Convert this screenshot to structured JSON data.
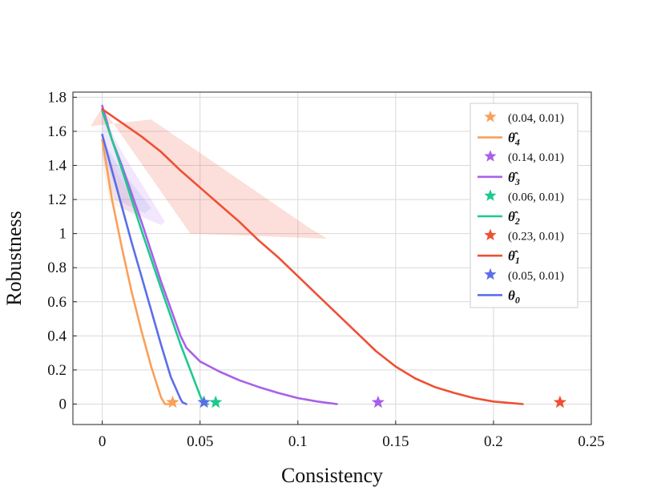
{
  "chart_data": {
    "type": "line",
    "title": "",
    "xlabel": "Consistency",
    "ylabel": "Robustness",
    "xlim": [
      -0.015,
      0.25
    ],
    "ylim": [
      -0.12,
      1.83
    ],
    "xticks": [
      0,
      0.05,
      0.1,
      0.15,
      0.2,
      0.25
    ],
    "xtick_labels": [
      "0",
      "0.05",
      "0.1",
      "0.15",
      "0.2",
      "0.25"
    ],
    "yticks": [
      0,
      0.2,
      0.4,
      0.6,
      0.8,
      1,
      1.2,
      1.4,
      1.6,
      1.8
    ],
    "ytick_labels": [
      "0",
      "0.2",
      "0.4",
      "0.6",
      "0.8",
      "1",
      "1.2",
      "1.4",
      "1.6",
      "1.8"
    ],
    "grid": true,
    "legend_position": "top-right",
    "series": [
      {
        "name": "θ̂4",
        "name_base": "θ̂",
        "name_sub": "4",
        "color": "#f9a05a",
        "x": [
          0.0,
          0.005,
          0.01,
          0.015,
          0.02,
          0.025,
          0.03,
          0.032,
          0.035
        ],
        "y": [
          1.55,
          1.2,
          0.92,
          0.66,
          0.43,
          0.22,
          0.04,
          0.0,
          0.0
        ]
      },
      {
        "name": "θ̂3",
        "name_base": "θ̂",
        "name_sub": "3",
        "color": "#a960e8",
        "x": [
          0.0,
          0.005,
          0.01,
          0.02,
          0.03,
          0.04,
          0.043,
          0.05,
          0.06,
          0.07,
          0.08,
          0.09,
          0.1,
          0.11,
          0.12
        ],
        "y": [
          1.75,
          1.55,
          1.4,
          1.07,
          0.72,
          0.4,
          0.33,
          0.25,
          0.19,
          0.14,
          0.1,
          0.065,
          0.035,
          0.015,
          0.0
        ]
      },
      {
        "name": "θ̂2",
        "name_base": "θ̂",
        "name_sub": "2",
        "color": "#1ec98d",
        "x": [
          0.0,
          0.01,
          0.02,
          0.03,
          0.04,
          0.05,
          0.052,
          0.054
        ],
        "y": [
          1.72,
          1.38,
          1.02,
          0.68,
          0.35,
          0.05,
          0.0,
          0.0
        ]
      },
      {
        "name": "θ̂1",
        "name_base": "θ̂",
        "name_sub": "1",
        "color": "#ee5034",
        "x": [
          0.0,
          0.01,
          0.02,
          0.03,
          0.04,
          0.05,
          0.06,
          0.07,
          0.08,
          0.09,
          0.1,
          0.11,
          0.12,
          0.13,
          0.14,
          0.15,
          0.16,
          0.17,
          0.18,
          0.19,
          0.2,
          0.215
        ],
        "y": [
          1.73,
          1.65,
          1.57,
          1.48,
          1.37,
          1.27,
          1.17,
          1.07,
          0.96,
          0.86,
          0.75,
          0.64,
          0.53,
          0.42,
          0.31,
          0.22,
          0.15,
          0.1,
          0.065,
          0.035,
          0.015,
          0.0
        ]
      },
      {
        "name": "θ0",
        "name_base": "θ",
        "name_sub": "0",
        "color": "#5b6ee8",
        "x": [
          0.0,
          0.005,
          0.01,
          0.015,
          0.02,
          0.025,
          0.03,
          0.035,
          0.04,
          0.041,
          0.043
        ],
        "y": [
          1.58,
          1.37,
          1.16,
          0.95,
          0.75,
          0.55,
          0.35,
          0.16,
          0.03,
          0.01,
          0.0
        ]
      }
    ],
    "markers": [
      {
        "label": "(0.04, 0.01)",
        "x": 0.036,
        "y": 0.01,
        "color": "#f9a05a"
      },
      {
        "label": "(0.14, 0.01)",
        "x": 0.141,
        "y": 0.01,
        "color": "#a960e8"
      },
      {
        "label": "(0.06, 0.01)",
        "x": 0.058,
        "y": 0.01,
        "color": "#1ec98d"
      },
      {
        "label": "(0.23, 0.01)",
        "x": 0.234,
        "y": 0.01,
        "color": "#ee5034"
      },
      {
        "label": "(0.05, 0.01)",
        "x": 0.052,
        "y": 0.01,
        "color": "#5b6ee8"
      }
    ],
    "bands": [
      {
        "color": "#ee5034",
        "opacity": 0.18,
        "x": [
          -0.006,
          0.025,
          0.105,
          0.115,
          0.045,
          0.0
        ],
        "y": [
          1.63,
          1.67,
          1.04,
          0.97,
          1.0,
          1.74
        ]
      },
      {
        "color": "#a960e8",
        "opacity": 0.15,
        "x": [
          0.0,
          0.01,
          0.032,
          0.03,
          0.01,
          0.0
        ],
        "y": [
          1.7,
          1.48,
          1.07,
          1.05,
          1.15,
          1.5
        ]
      },
      {
        "color": "#5b6ee8",
        "opacity": 0.12,
        "x": [
          0.0,
          0.008,
          0.025,
          0.022,
          0.006,
          0.0
        ],
        "y": [
          1.55,
          1.4,
          1.15,
          1.12,
          1.2,
          1.45
        ]
      },
      {
        "color": "#f9a05a",
        "opacity": 0.12,
        "x": [
          0.0,
          0.008,
          0.02,
          0.018,
          0.004,
          0.0
        ],
        "y": [
          1.52,
          1.35,
          1.12,
          1.1,
          1.18,
          1.4
        ]
      }
    ],
    "legend_order": [
      {
        "kind": "marker",
        "ref": 0
      },
      {
        "kind": "line",
        "ref": 0
      },
      {
        "kind": "marker",
        "ref": 1
      },
      {
        "kind": "line",
        "ref": 1
      },
      {
        "kind": "marker",
        "ref": 2
      },
      {
        "kind": "line",
        "ref": 2
      },
      {
        "kind": "marker",
        "ref": 3
      },
      {
        "kind": "line",
        "ref": 3
      },
      {
        "kind": "marker",
        "ref": 4
      },
      {
        "kind": "line",
        "ref": 4
      }
    ]
  }
}
